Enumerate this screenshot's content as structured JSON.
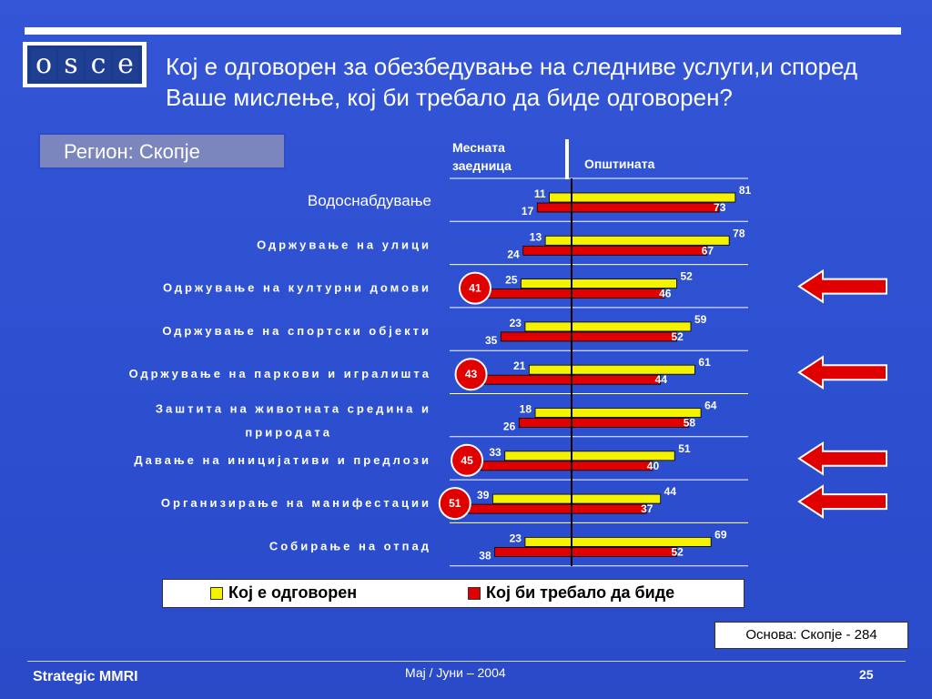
{
  "logo": {
    "letters": [
      "o",
      "s",
      "c",
      "e"
    ]
  },
  "title": "Кој е одговорен за обезбедување на следниве услуги,и според Ваше мислење, кој би требало да биде одговорен?",
  "region": "Регион: Скопје",
  "headers": {
    "left": "Месната заедница",
    "right": "Општината"
  },
  "legend": {
    "yellow": "Кој е одговорен",
    "red": "Кој би требало да биде"
  },
  "basis": "Основа: Скопје - 284",
  "footer": {
    "left": "Strategic MMRI",
    "center": "Мај / Јуни – 2004",
    "page": "25"
  },
  "colors": {
    "yellow": "#f5f200",
    "red": "#e00000",
    "circle": "#e00000",
    "arrow": "#e00000"
  },
  "chart_data": {
    "type": "bar",
    "orientation": "horizontal-diverging",
    "categories": [
      "Водоснабдување",
      "Одржување на улици",
      "Одржување на културни домови",
      "Одржување на спортски објекти",
      "Одржување на паркови и игралишта",
      "Заштита на животната средина и природата",
      "Давање на иницијативи и предлози",
      "Организирање на манифестации",
      "Собирање на отпад"
    ],
    "series": [
      {
        "name": "Кој е одговорен",
        "side": "Месната заедница",
        "values": [
          11,
          13,
          25,
          23,
          21,
          18,
          33,
          39,
          23
        ]
      },
      {
        "name": "Кој би требало да биде",
        "side": "Месната заедница",
        "values": [
          17,
          24,
          41,
          35,
          43,
          26,
          45,
          51,
          38
        ]
      },
      {
        "name": "Кој е одговорен",
        "side": "Општината",
        "values": [
          81,
          78,
          52,
          59,
          61,
          64,
          51,
          44,
          69
        ]
      },
      {
        "name": "Кој би требало да биде",
        "side": "Општината",
        "values": [
          73,
          67,
          46,
          52,
          44,
          58,
          40,
          37,
          52
        ]
      }
    ],
    "highlighted": [
      2,
      4,
      6,
      7
    ]
  }
}
